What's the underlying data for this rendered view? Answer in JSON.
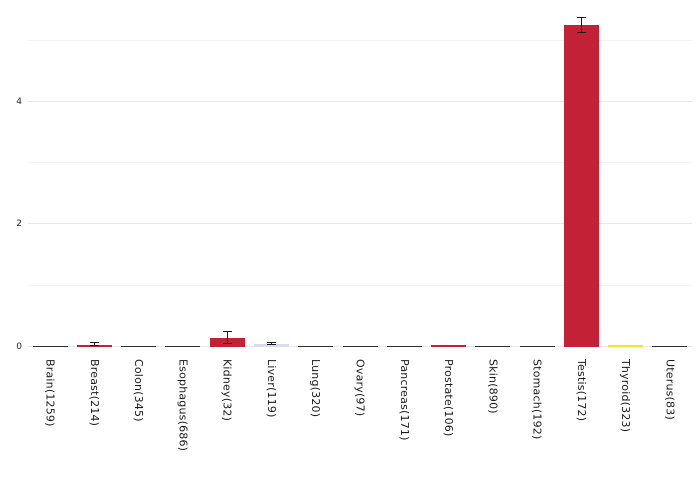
{
  "chart_data": {
    "type": "bar",
    "title": "",
    "xlabel": "",
    "ylabel": "",
    "categories": [
      "Brain(1259)",
      "Breast(214)",
      "Colon(345)",
      "Esophagus(686)",
      "Kidney(32)",
      "Liver(119)",
      "Lung(320)",
      "Ovary(97)",
      "Pancreas(171)",
      "Prostate(106)",
      "Skin(890)",
      "Stomach(192)",
      "Testis(172)",
      "Thyroid(323)",
      "Uterus(83)"
    ],
    "values": [
      0.01,
      0.04,
      0.01,
      0.015,
      0.15,
      0.05,
      0.01,
      0.008,
      0.012,
      0.03,
      0.01,
      0.008,
      5.25,
      0.025,
      0.01
    ],
    "errors": [
      0.004,
      0.025,
      0.003,
      0.005,
      0.1,
      0.02,
      0.003,
      0.003,
      0.004,
      0.015,
      0.003,
      0.003,
      0.12,
      0.01,
      0.004
    ],
    "bar_colors": [
      "#2e2e2e",
      "#c22136",
      "#2e2e2e",
      "#2e2e2e",
      "#c22136",
      "#dadaf0",
      "#2e2e2e",
      "#2e2e2e",
      "#2e2e2e",
      "#c22136",
      "#2e2e2e",
      "#2e2e2e",
      "#c22136",
      "#f2ea18",
      "#2e2e2e"
    ],
    "error_bar_color": "#1a1a1a",
    "ylim": [
      0,
      5.5
    ],
    "yticks": [
      0,
      2,
      4
    ],
    "gridlines": [
      0,
      1,
      2,
      3,
      4,
      5
    ],
    "grid": "horizontal",
    "legend": "none",
    "background_color": "#ffffff",
    "major_gridline_color": "#e7e7e7",
    "minor_gridline_color": "#f3f3f3",
    "tick_label_color": "#262626"
  }
}
